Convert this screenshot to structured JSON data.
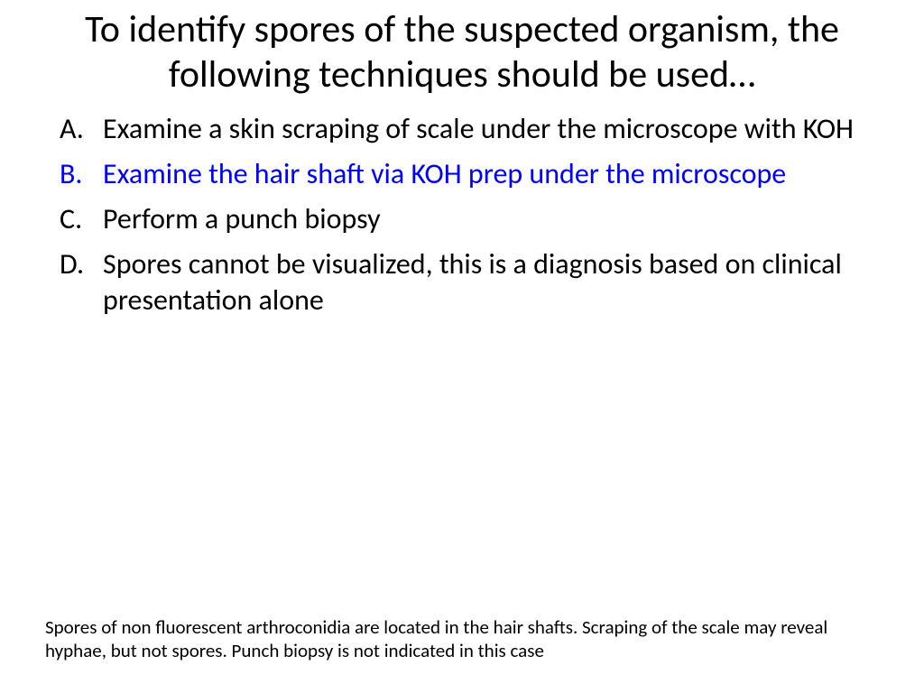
{
  "slide": {
    "title": "To identify spores of the suspected organism, the following techniques should be used…",
    "options": [
      {
        "letter": "A.",
        "text": "Examine a skin scraping of scale under the microscope with KOH",
        "highlighted": false
      },
      {
        "letter": "B.",
        "text": "Examine the hair shaft via KOH prep under the microscope",
        "highlighted": true
      },
      {
        "letter": "C.",
        "text": "Perform a punch biopsy",
        "highlighted": false
      },
      {
        "letter": "D.",
        "text": "Spores cannot be visualized, this is a diagnosis based on clinical presentation alone",
        "highlighted": false
      }
    ],
    "footnote": "Spores of non fluorescent arthroconidia are located in the hair shafts. Scraping of the scale may reveal hyphae, but not spores. Punch biopsy is not indicated in this case"
  },
  "style": {
    "title_fontsize": 42,
    "option_fontsize": 32,
    "footnote_fontsize": 21,
    "text_color": "#000000",
    "highlight_color": "#0000ff",
    "background_color": "#ffffff",
    "font_family": "Calibri"
  }
}
